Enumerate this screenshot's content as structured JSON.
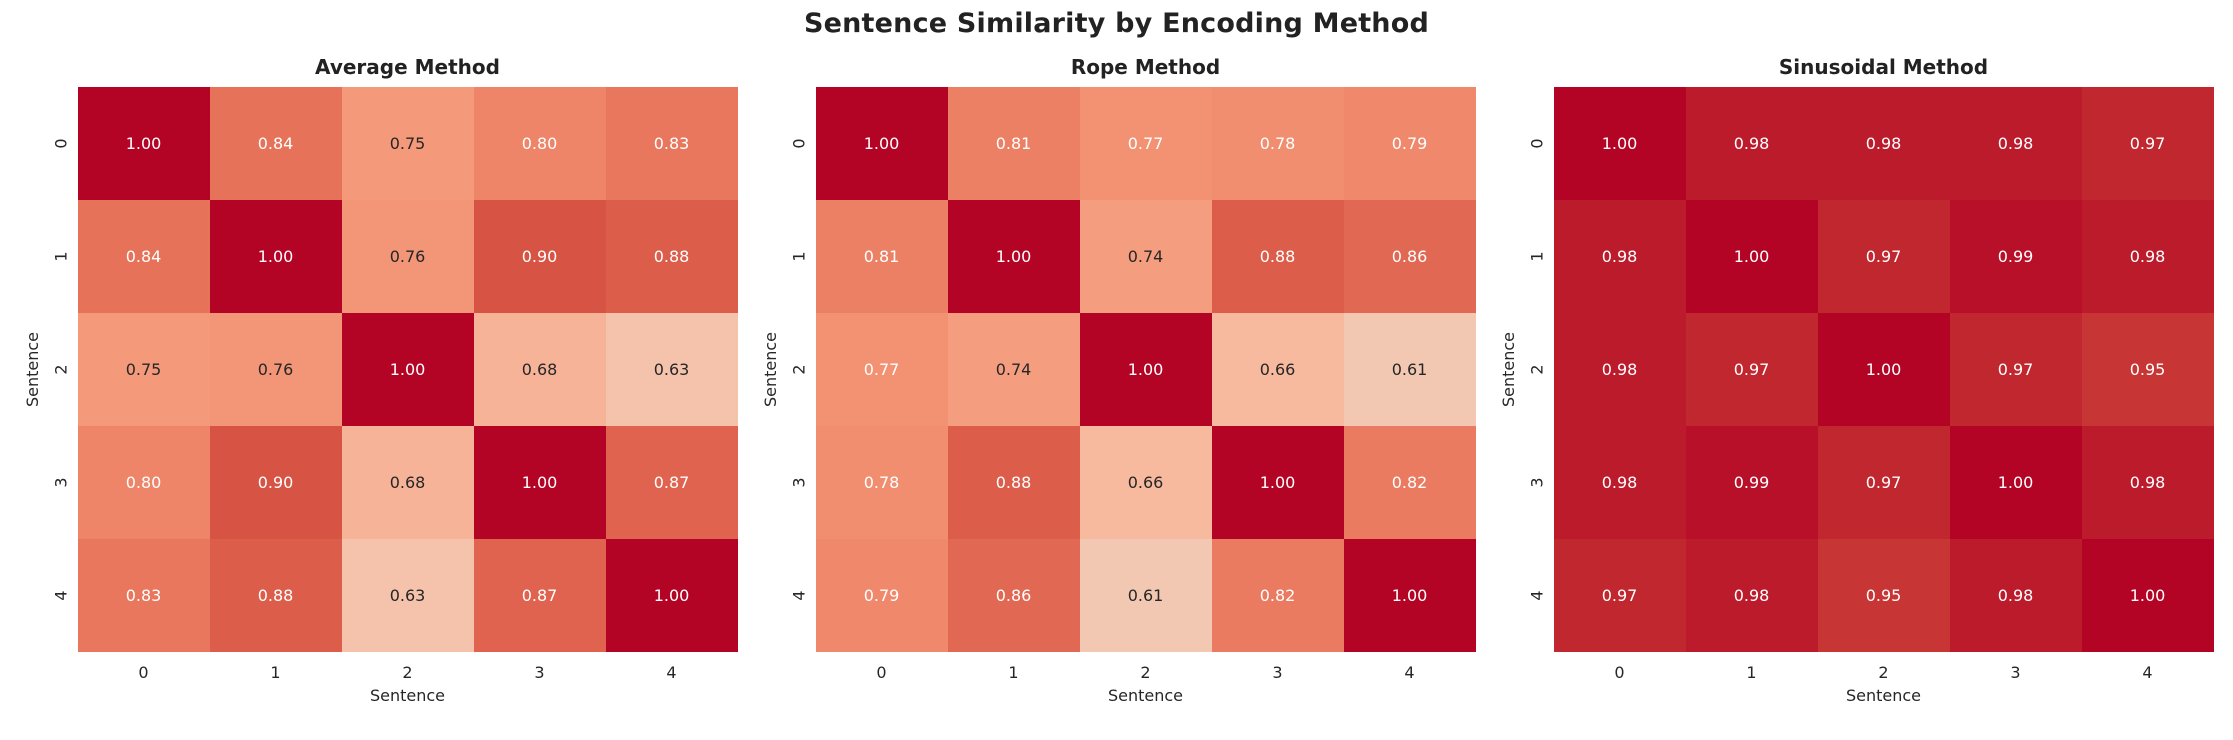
{
  "figure": {
    "suptitle": "Sentence Similarity by Encoding Method",
    "background_color": "#ffffff",
    "title_color": "#222222",
    "tick_color": "#262626",
    "annot_dark_color": "#262626",
    "annot_light_color": "#ffffff",
    "diag_max_color": "#b40426",
    "min_value_color": "#f5c4ab"
  },
  "chart_data": [
    {
      "type": "heatmap",
      "title": "Average Method",
      "xlabel": "Sentence",
      "ylabel": "Sentence",
      "x_ticks": [
        "0",
        "1",
        "2",
        "3",
        "4"
      ],
      "y_ticks": [
        "0",
        "1",
        "2",
        "3",
        "4"
      ],
      "colormap": "coolwarm",
      "vmin": 0.0,
      "vmax": 1.0,
      "annot_format": ".2f",
      "values": [
        [
          1.0,
          0.84,
          0.75,
          0.8,
          0.83
        ],
        [
          0.84,
          1.0,
          0.76,
          0.9,
          0.88
        ],
        [
          0.75,
          0.76,
          1.0,
          0.68,
          0.63
        ],
        [
          0.8,
          0.9,
          0.68,
          1.0,
          0.87
        ],
        [
          0.83,
          0.88,
          0.63,
          0.87,
          1.0
        ]
      ]
    },
    {
      "type": "heatmap",
      "title": "Rope Method",
      "xlabel": "Sentence",
      "ylabel": "Sentence",
      "x_ticks": [
        "0",
        "1",
        "2",
        "3",
        "4"
      ],
      "y_ticks": [
        "0",
        "1",
        "2",
        "3",
        "4"
      ],
      "colormap": "coolwarm",
      "vmin": 0.0,
      "vmax": 1.0,
      "annot_format": ".2f",
      "values": [
        [
          1.0,
          0.81,
          0.77,
          0.78,
          0.79
        ],
        [
          0.81,
          1.0,
          0.74,
          0.88,
          0.86
        ],
        [
          0.77,
          0.74,
          1.0,
          0.66,
          0.61
        ],
        [
          0.78,
          0.88,
          0.66,
          1.0,
          0.82
        ],
        [
          0.79,
          0.86,
          0.61,
          0.82,
          1.0
        ]
      ]
    },
    {
      "type": "heatmap",
      "title": "Sinusoidal Method",
      "xlabel": "Sentence",
      "ylabel": "Sentence",
      "x_ticks": [
        "0",
        "1",
        "2",
        "3",
        "4"
      ],
      "y_ticks": [
        "0",
        "1",
        "2",
        "3",
        "4"
      ],
      "colormap": "coolwarm",
      "vmin": 0.0,
      "vmax": 1.0,
      "annot_format": ".2f",
      "values": [
        [
          1.0,
          0.98,
          0.98,
          0.98,
          0.97
        ],
        [
          0.98,
          1.0,
          0.97,
          0.99,
          0.98
        ],
        [
          0.98,
          0.97,
          1.0,
          0.97,
          0.95
        ],
        [
          0.98,
          0.99,
          0.97,
          1.0,
          0.98
        ],
        [
          0.97,
          0.98,
          0.95,
          0.98,
          1.0
        ]
      ]
    }
  ]
}
